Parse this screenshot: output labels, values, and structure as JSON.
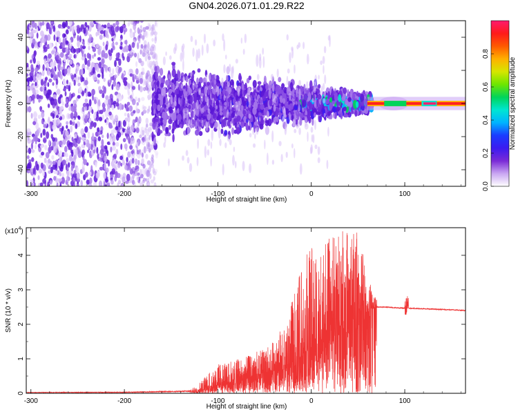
{
  "title": "GN04.2026.071.01.29.R22",
  "chart_data": [
    {
      "type": "heatmap",
      "xlabel": "Height of straight line (km)",
      "ylabel": "Frequency (Hz)",
      "xlim": [
        -305,
        165
      ],
      "ylim": [
        -50,
        50
      ],
      "xticks": [
        -300,
        -200,
        -100,
        0,
        100
      ],
      "yticks": [
        -40,
        -20,
        0,
        20,
        40
      ],
      "colorbar": {
        "label": "Normalized spectral amplitude",
        "range": [
          0,
          1
        ],
        "ticks": [
          "0.0",
          "0.2",
          "0.4",
          "0.6",
          "0.8"
        ],
        "colors": [
          "#ffffff",
          "#c9a6f2",
          "#7a2bd6",
          "#3b1bf0",
          "#1a3cff",
          "#00b4ff",
          "#00e6d2",
          "#00d45a",
          "#6ee600",
          "#d6e600",
          "#ffb000",
          "#ff5a00",
          "#ff1a1a",
          "#ff1a6e"
        ]
      },
      "description_points": {
        "noise_region_x": [
          -305,
          -165
        ],
        "signal_band_x": [
          -165,
          60
        ],
        "carrier_x": [
          60,
          165
        ],
        "carrier_frequency": 0
      }
    },
    {
      "type": "line",
      "xlabel": "Height of straight line (km)",
      "ylabel": "SNR (10 * v/v)",
      "yunit": "(x10^4)",
      "xlim": [
        -305,
        165
      ],
      "ylim": [
        0,
        4.8
      ],
      "xticks": [
        -300,
        -200,
        -100,
        0,
        100
      ],
      "yticks": [
        0,
        1,
        2,
        3,
        4
      ],
      "series": [
        {
          "color": "#ee3333",
          "x": [
            -305,
            -200,
            -130,
            -120,
            -110,
            -100,
            -90,
            -80,
            -70,
            -60,
            -50,
            -40,
            -30,
            -20,
            -10,
            0,
            10,
            20,
            30,
            40,
            50,
            60,
            70,
            80,
            90,
            100,
            110,
            120,
            130,
            140,
            150,
            165
          ],
          "y_mean": [
            0.02,
            0.02,
            0.04,
            0.08,
            0.18,
            0.28,
            0.32,
            0.36,
            0.4,
            0.46,
            0.52,
            0.62,
            0.75,
            0.92,
            1.1,
            1.35,
            1.55,
            1.75,
            1.95,
            2.05,
            2.2,
            2.35,
            2.5,
            2.5,
            2.48,
            2.47,
            2.46,
            2.45,
            2.44,
            2.43,
            2.42,
            2.4
          ],
          "y_max": [
            0.03,
            0.04,
            0.08,
            0.3,
            0.6,
            0.85,
            0.9,
            1.0,
            1.05,
            1.2,
            1.3,
            1.5,
            2.0,
            2.7,
            3.8,
            4.3,
            4.4,
            4.5,
            4.7,
            4.75,
            4.75,
            3.5,
            2.7,
            2.55,
            2.52,
            2.75,
            2.5,
            2.48,
            2.46,
            2.45,
            2.44,
            2.42
          ]
        }
      ]
    }
  ]
}
